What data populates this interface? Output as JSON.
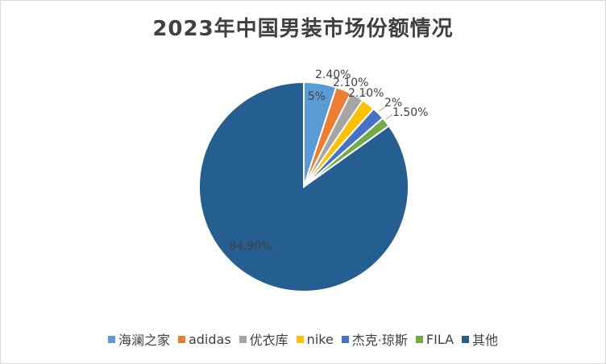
{
  "chart_data": {
    "type": "pie",
    "title": "2023年中国男装市场份额情况",
    "categories": [
      "海澜之家",
      "adidas",
      "优衣库",
      "nike",
      "杰克·琼斯",
      "FILA",
      "其他"
    ],
    "values": [
      5,
      2.4,
      2.1,
      2.1,
      2,
      1.5,
      84.9
    ],
    "data_labels": [
      "5%",
      "2.40%",
      "2.10%",
      "2.10%",
      "2%",
      "1.50%",
      "84.90%"
    ],
    "colors": [
      "#5b9bd5",
      "#ed7d31",
      "#a5a5a5",
      "#ffc000",
      "#4472c4",
      "#70ad47",
      "#255e91"
    ],
    "start_angle_deg": 0,
    "legend_position": "bottom"
  }
}
